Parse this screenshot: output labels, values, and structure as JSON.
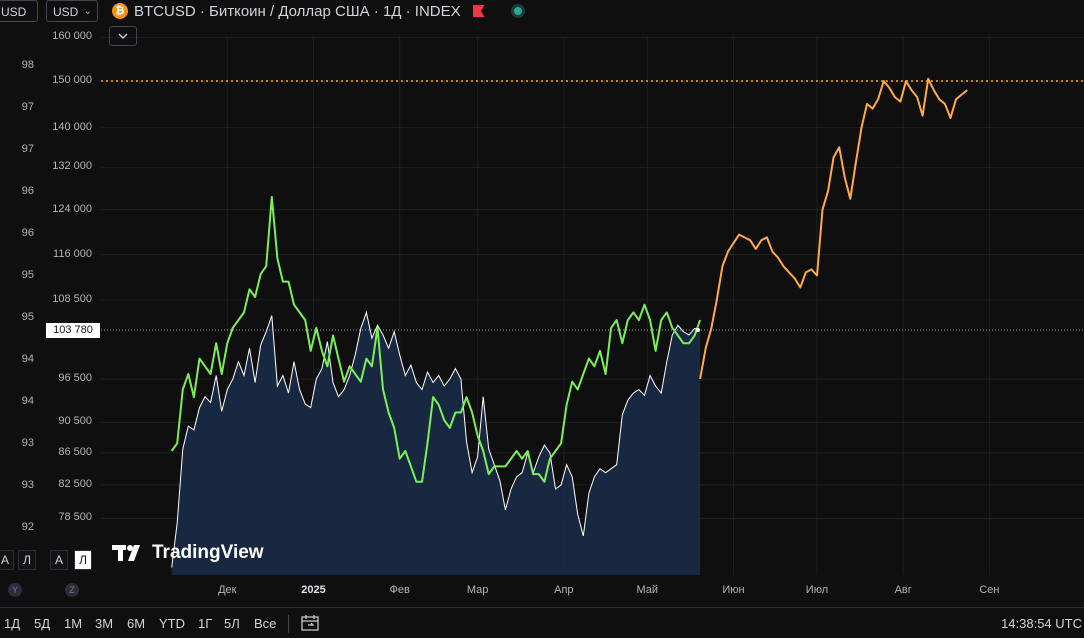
{
  "header": {
    "currency_left": "USD",
    "currency_select": "USD",
    "coin_glyph": "₿",
    "title": "BTCUSD · Биткоин / Доллар США · 1Д · INDEX",
    "collapse_icon": "chevron-down-icon"
  },
  "colors": {
    "background": "#0f0f0f",
    "grid": "#1e1e1e",
    "btc_line": "#ffffff",
    "btc_area": "#1a2a45",
    "compare_green": "#7cee5a",
    "compare_orange": "#ffa94d",
    "dotted_150k": "#ffa726"
  },
  "price_tag": "103 780",
  "logo_text": "TradingView",
  "scale_buttons_left": [
    "А",
    "Л"
  ],
  "scale_buttons_right": [
    "А",
    "Л"
  ],
  "axis_letters": [
    "Y",
    "Z"
  ],
  "range_buttons": [
    "1Д",
    "5Д",
    "1М",
    "3М",
    "6М",
    "YTD",
    "1Г",
    "5Л",
    "Все"
  ],
  "clock": "14:38:54 UTC",
  "chart_data": {
    "type": "line",
    "title": "BTCUSD · Биткоин / Доллар США · 1Д · INDEX",
    "x_tick_labels": [
      "Дек",
      "2025",
      "Фев",
      "Мар",
      "Апр",
      "Май",
      "Июн",
      "Июл",
      "Авг",
      "Сен"
    ],
    "right_axis": {
      "tick_labels": [
        "160 000",
        "150 000",
        "140 000",
        "132 000",
        "124 000",
        "116 000",
        "108 500",
        "96 500",
        "90 500",
        "86 500",
        "82 500",
        "78 500"
      ],
      "ticks": [
        160000,
        150000,
        140000,
        132000,
        124000,
        116000,
        108500,
        96500,
        90500,
        86500,
        82500,
        78500
      ],
      "log_scale": true,
      "range": [
        73000,
        175000
      ]
    },
    "left_axis": {
      "tick_labels": [
        "98",
        "97",
        "97",
        "96",
        "96",
        "95",
        "95",
        "94",
        "94",
        "93",
        "93",
        "92"
      ],
      "range": [
        91.6,
        98.4
      ]
    },
    "reference_line": {
      "value": 150000,
      "style": "dotted"
    },
    "last_price": 103780,
    "series": [
      {
        "axis": "right",
        "style": "area",
        "points": [
          [
            "2024-11-11",
            73000
          ],
          [
            "2024-11-13",
            78000
          ],
          [
            "2024-11-15",
            87000
          ],
          [
            "2024-11-17",
            90000
          ],
          [
            "2024-11-19",
            89500
          ],
          [
            "2024-11-21",
            92500
          ],
          [
            "2024-11-23",
            94000
          ],
          [
            "2024-11-25",
            93200
          ],
          [
            "2024-11-27",
            97000
          ],
          [
            "2024-11-29",
            92000
          ],
          [
            "2024-12-01",
            95000
          ],
          [
            "2024-12-03",
            96500
          ],
          [
            "2024-12-05",
            99000
          ],
          [
            "2024-12-07",
            97000
          ],
          [
            "2024-12-09",
            101000
          ],
          [
            "2024-12-11",
            96000
          ],
          [
            "2024-12-13",
            101500
          ],
          [
            "2024-12-15",
            103500
          ],
          [
            "2024-12-17",
            106000
          ],
          [
            "2024-12-19",
            95500
          ],
          [
            "2024-12-21",
            97000
          ],
          [
            "2024-12-23",
            94500
          ],
          [
            "2024-12-25",
            99000
          ],
          [
            "2024-12-27",
            95000
          ],
          [
            "2024-12-29",
            93000
          ],
          [
            "2024-12-31",
            92500
          ],
          [
            "2025-01-02",
            96500
          ],
          [
            "2025-01-04",
            98000
          ],
          [
            "2025-01-06",
            102000
          ],
          [
            "2025-01-08",
            96000
          ],
          [
            "2025-01-10",
            94000
          ],
          [
            "2025-01-12",
            95000
          ],
          [
            "2025-01-14",
            97000
          ],
          [
            "2025-01-16",
            100000
          ],
          [
            "2025-01-18",
            104000
          ],
          [
            "2025-01-20",
            106500
          ],
          [
            "2025-01-22",
            102500
          ],
          [
            "2025-01-24",
            104500
          ],
          [
            "2025-01-26",
            103000
          ],
          [
            "2025-01-28",
            101000
          ],
          [
            "2025-01-30",
            103500
          ],
          [
            "2025-02-01",
            100000
          ],
          [
            "2025-02-03",
            97000
          ],
          [
            "2025-02-05",
            98500
          ],
          [
            "2025-02-07",
            96000
          ],
          [
            "2025-02-09",
            95000
          ],
          [
            "2025-02-11",
            97500
          ],
          [
            "2025-02-13",
            96000
          ],
          [
            "2025-02-15",
            97000
          ],
          [
            "2025-02-17",
            95500
          ],
          [
            "2025-02-19",
            96500
          ],
          [
            "2025-02-21",
            98000
          ],
          [
            "2025-02-23",
            96500
          ],
          [
            "2025-02-25",
            88000
          ],
          [
            "2025-02-27",
            84000
          ],
          [
            "2025-03-01",
            86000
          ],
          [
            "2025-03-03",
            94000
          ],
          [
            "2025-03-05",
            87000
          ],
          [
            "2025-03-07",
            85000
          ],
          [
            "2025-03-09",
            83000
          ],
          [
            "2025-03-11",
            79500
          ],
          [
            "2025-03-13",
            82000
          ],
          [
            "2025-03-15",
            83500
          ],
          [
            "2025-03-17",
            84000
          ],
          [
            "2025-03-19",
            86500
          ],
          [
            "2025-03-21",
            84000
          ],
          [
            "2025-03-23",
            86000
          ],
          [
            "2025-03-25",
            87500
          ],
          [
            "2025-03-27",
            86500
          ],
          [
            "2025-03-29",
            82000
          ],
          [
            "2025-03-31",
            82500
          ],
          [
            "2025-04-02",
            85000
          ],
          [
            "2025-04-04",
            83500
          ],
          [
            "2025-04-06",
            79000
          ],
          [
            "2025-04-08",
            76500
          ],
          [
            "2025-04-10",
            81500
          ],
          [
            "2025-04-12",
            83500
          ],
          [
            "2025-04-14",
            84500
          ],
          [
            "2025-04-16",
            84000
          ],
          [
            "2025-04-18",
            84500
          ],
          [
            "2025-04-20",
            85000
          ],
          [
            "2025-04-22",
            91500
          ],
          [
            "2025-04-24",
            93500
          ],
          [
            "2025-04-26",
            94500
          ],
          [
            "2025-04-28",
            95000
          ],
          [
            "2025-04-30",
            94200
          ],
          [
            "2025-05-02",
            97000
          ],
          [
            "2025-05-04",
            95500
          ],
          [
            "2025-05-06",
            94500
          ],
          [
            "2025-05-08",
            99000
          ],
          [
            "2025-05-10",
            103000
          ],
          [
            "2025-05-12",
            104500
          ],
          [
            "2025-05-14",
            103500
          ],
          [
            "2025-05-16",
            103000
          ],
          [
            "2025-05-18",
            104000
          ],
          [
            "2025-05-20",
            103780
          ]
        ]
      },
      {
        "axis": "left",
        "style": "line",
        "color": "green",
        "points": [
          [
            "2024-11-11",
            93.0
          ],
          [
            "2024-11-13",
            93.1
          ],
          [
            "2024-11-15",
            93.8
          ],
          [
            "2024-11-17",
            94.0
          ],
          [
            "2024-11-19",
            93.7
          ],
          [
            "2024-11-21",
            94.2
          ],
          [
            "2024-11-23",
            94.1
          ],
          [
            "2024-11-25",
            94.0
          ],
          [
            "2024-11-27",
            94.4
          ],
          [
            "2024-11-29",
            94.0
          ],
          [
            "2024-12-01",
            94.4
          ],
          [
            "2024-12-03",
            94.6
          ],
          [
            "2024-12-05",
            94.7
          ],
          [
            "2024-12-07",
            94.8
          ],
          [
            "2024-12-09",
            95.1
          ],
          [
            "2024-12-11",
            95.0
          ],
          [
            "2024-12-13",
            95.3
          ],
          [
            "2024-12-15",
            95.4
          ],
          [
            "2024-12-17",
            96.3
          ],
          [
            "2024-12-19",
            95.5
          ],
          [
            "2024-12-21",
            95.2
          ],
          [
            "2024-12-23",
            95.2
          ],
          [
            "2024-12-25",
            94.9
          ],
          [
            "2024-12-27",
            94.8
          ],
          [
            "2024-12-29",
            94.7
          ],
          [
            "2024-12-31",
            94.3
          ],
          [
            "2025-01-02",
            94.6
          ],
          [
            "2025-01-04",
            94.3
          ],
          [
            "2025-01-06",
            94.1
          ],
          [
            "2025-01-08",
            94.5
          ],
          [
            "2025-01-10",
            94.2
          ],
          [
            "2025-01-12",
            93.9
          ],
          [
            "2025-01-14",
            94.1
          ],
          [
            "2025-01-16",
            94.0
          ],
          [
            "2025-01-18",
            93.9
          ],
          [
            "2025-01-20",
            94.2
          ],
          [
            "2025-01-22",
            94.1
          ],
          [
            "2025-01-24",
            94.6
          ],
          [
            "2025-01-26",
            93.8
          ],
          [
            "2025-01-28",
            93.5
          ],
          [
            "2025-01-30",
            93.3
          ],
          [
            "2025-02-01",
            92.9
          ],
          [
            "2025-02-03",
            93.0
          ],
          [
            "2025-02-05",
            92.8
          ],
          [
            "2025-02-07",
            92.6
          ],
          [
            "2025-02-09",
            92.6
          ],
          [
            "2025-02-11",
            93.1
          ],
          [
            "2025-02-13",
            93.7
          ],
          [
            "2025-02-15",
            93.6
          ],
          [
            "2025-02-17",
            93.4
          ],
          [
            "2025-02-19",
            93.3
          ],
          [
            "2025-02-21",
            93.5
          ],
          [
            "2025-02-23",
            93.5
          ],
          [
            "2025-02-25",
            93.7
          ],
          [
            "2025-02-27",
            93.5
          ],
          [
            "2025-03-01",
            93.2
          ],
          [
            "2025-03-03",
            93.0
          ],
          [
            "2025-03-05",
            92.7
          ],
          [
            "2025-03-07",
            92.8
          ],
          [
            "2025-03-09",
            92.8
          ],
          [
            "2025-03-11",
            92.8
          ],
          [
            "2025-03-13",
            92.9
          ],
          [
            "2025-03-15",
            93.0
          ],
          [
            "2025-03-17",
            92.9
          ],
          [
            "2025-03-19",
            93.0
          ],
          [
            "2025-03-21",
            92.7
          ],
          [
            "2025-03-23",
            92.7
          ],
          [
            "2025-03-25",
            92.6
          ],
          [
            "2025-03-27",
            92.9
          ],
          [
            "2025-03-29",
            93.0
          ],
          [
            "2025-03-31",
            93.1
          ],
          [
            "2025-04-02",
            93.6
          ],
          [
            "2025-04-04",
            93.9
          ],
          [
            "2025-04-06",
            93.8
          ],
          [
            "2025-04-08",
            94.0
          ],
          [
            "2025-04-10",
            94.2
          ],
          [
            "2025-04-12",
            94.1
          ],
          [
            "2025-04-14",
            94.3
          ],
          [
            "2025-04-16",
            94.0
          ],
          [
            "2025-04-18",
            94.6
          ],
          [
            "2025-04-20",
            94.7
          ],
          [
            "2025-04-22",
            94.4
          ],
          [
            "2025-04-24",
            94.7
          ],
          [
            "2025-04-26",
            94.8
          ],
          [
            "2025-04-28",
            94.7
          ],
          [
            "2025-04-30",
            94.9
          ],
          [
            "2025-05-02",
            94.7
          ],
          [
            "2025-05-04",
            94.3
          ],
          [
            "2025-05-06",
            94.7
          ],
          [
            "2025-05-08",
            94.8
          ],
          [
            "2025-05-10",
            94.6
          ],
          [
            "2025-05-12",
            94.5
          ],
          [
            "2025-05-14",
            94.4
          ],
          [
            "2025-05-16",
            94.4
          ],
          [
            "2025-05-18",
            94.5
          ],
          [
            "2025-05-20",
            94.7
          ]
        ]
      },
      {
        "axis": "right",
        "style": "line",
        "color": "orange",
        "points": [
          [
            "2025-05-20",
            96500
          ],
          [
            "2025-05-22",
            101000
          ],
          [
            "2025-05-24",
            104000
          ],
          [
            "2025-05-26",
            108500
          ],
          [
            "2025-05-28",
            114000
          ],
          [
            "2025-05-30",
            116500
          ],
          [
            "2025-06-01",
            118000
          ],
          [
            "2025-06-03",
            119500
          ],
          [
            "2025-06-05",
            119000
          ],
          [
            "2025-06-07",
            118500
          ],
          [
            "2025-06-09",
            117000
          ],
          [
            "2025-06-11",
            118500
          ],
          [
            "2025-06-13",
            119000
          ],
          [
            "2025-06-15",
            116500
          ],
          [
            "2025-06-17",
            115500
          ],
          [
            "2025-06-19",
            114000
          ],
          [
            "2025-06-21",
            113000
          ],
          [
            "2025-06-23",
            112000
          ],
          [
            "2025-06-25",
            110500
          ],
          [
            "2025-06-27",
            113000
          ],
          [
            "2025-06-29",
            113500
          ],
          [
            "2025-07-01",
            112500
          ],
          [
            "2025-07-03",
            124000
          ],
          [
            "2025-07-05",
            127500
          ],
          [
            "2025-07-07",
            134000
          ],
          [
            "2025-07-09",
            136000
          ],
          [
            "2025-07-11",
            130000
          ],
          [
            "2025-07-13",
            126000
          ],
          [
            "2025-07-15",
            133000
          ],
          [
            "2025-07-17",
            140000
          ],
          [
            "2025-07-19",
            145000
          ],
          [
            "2025-07-21",
            144000
          ],
          [
            "2025-07-23",
            146000
          ],
          [
            "2025-07-25",
            150000
          ],
          [
            "2025-07-27",
            148500
          ],
          [
            "2025-07-29",
            146500
          ],
          [
            "2025-07-31",
            145500
          ],
          [
            "2025-08-02",
            150000
          ],
          [
            "2025-08-04",
            148000
          ],
          [
            "2025-08-06",
            146500
          ],
          [
            "2025-08-08",
            142500
          ],
          [
            "2025-08-10",
            150500
          ],
          [
            "2025-08-12",
            148000
          ],
          [
            "2025-08-14",
            146000
          ],
          [
            "2025-08-16",
            145000
          ],
          [
            "2025-08-18",
            142000
          ],
          [
            "2025-08-20",
            146000
          ],
          [
            "2025-08-22",
            147000
          ],
          [
            "2025-08-24",
            148000
          ]
        ]
      }
    ]
  }
}
